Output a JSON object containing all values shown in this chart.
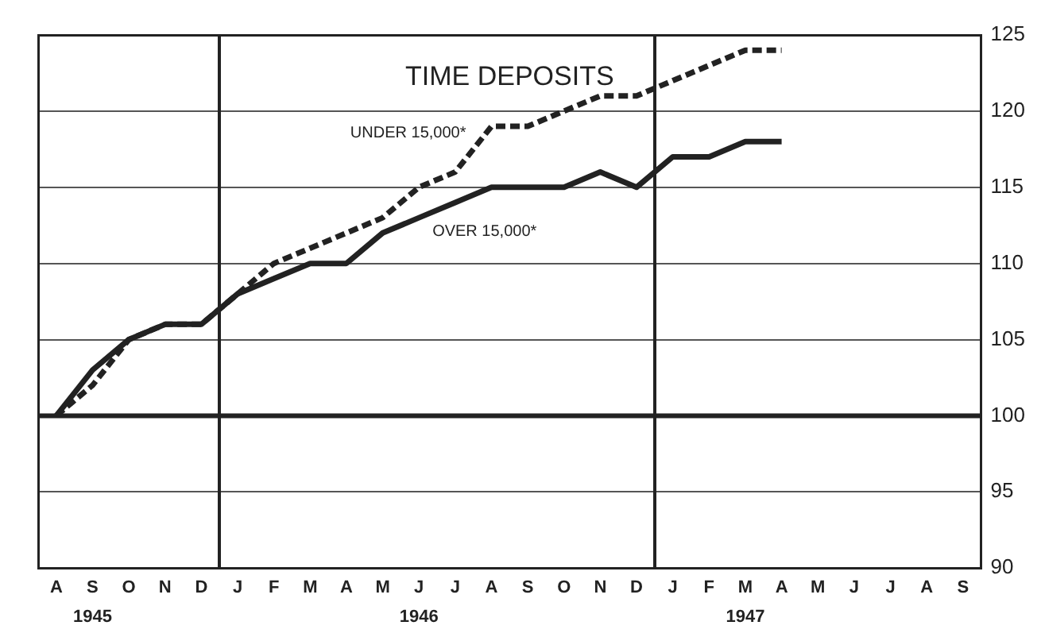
{
  "chart_data": {
    "type": "line",
    "title": "TIME DEPOSITS",
    "categories": [
      "A",
      "S\n1945",
      "O",
      "N",
      "D",
      "J",
      "F",
      "M",
      "A",
      "M",
      "J\n1946",
      "J",
      "A",
      "S",
      "O",
      "N",
      "D",
      "J",
      "F",
      "M\n1947",
      "A",
      "M",
      "J",
      "J",
      "A",
      "S"
    ],
    "series": [
      {
        "name": "UNDER 15,000*",
        "color": "#222222",
        "line_style": "dashed",
        "values": [
          100,
          102,
          105,
          106,
          106,
          108,
          110,
          111,
          112,
          113,
          115,
          116,
          119,
          119,
          120,
          121,
          121,
          122,
          123,
          124,
          124,
          null,
          null,
          null,
          null,
          null
        ]
      },
      {
        "name": "OVER 15,000*",
        "color": "#222222",
        "line_style": "solid",
        "values": [
          100,
          103,
          105,
          106,
          106,
          108,
          109,
          110,
          110,
          112,
          113,
          114,
          115,
          115,
          115,
          116,
          115,
          117,
          117,
          118,
          118,
          null,
          null,
          null,
          null,
          null
        ]
      }
    ],
    "ylim": [
      90,
      125
    ],
    "yticks": [
      90,
      95,
      100,
      105,
      110,
      115,
      120,
      125
    ],
    "grid": "y",
    "legend": false,
    "marker": "none",
    "ref_lines": [
      {
        "axis": "y",
        "value": 100,
        "color": "#222222"
      }
    ]
  }
}
